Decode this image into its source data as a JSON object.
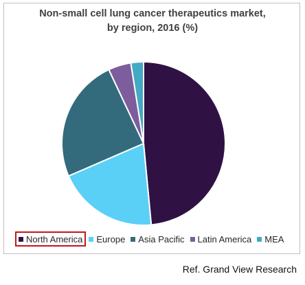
{
  "chart_data": {
    "type": "pie",
    "title": "Non-small cell lung cancer therapeutics market,",
    "subtitle": "by region, 2016 (%)",
    "slices": [
      {
        "label": "North America",
        "value": 48.5,
        "color": "#2f1243"
      },
      {
        "label": "Europe",
        "value": 20.0,
        "color": "#5ad0f6"
      },
      {
        "label": "Asia Pacific",
        "value": 24.5,
        "color": "#336b7d"
      },
      {
        "label": "Latin America",
        "value": 4.5,
        "color": "#7d5d9b"
      },
      {
        "label": "MEA",
        "value": 2.5,
        "color": "#44a9c4"
      }
    ],
    "legend_position": "bottom",
    "highlighted_legend_item": "North America"
  },
  "source": "Ref. Grand View Research"
}
